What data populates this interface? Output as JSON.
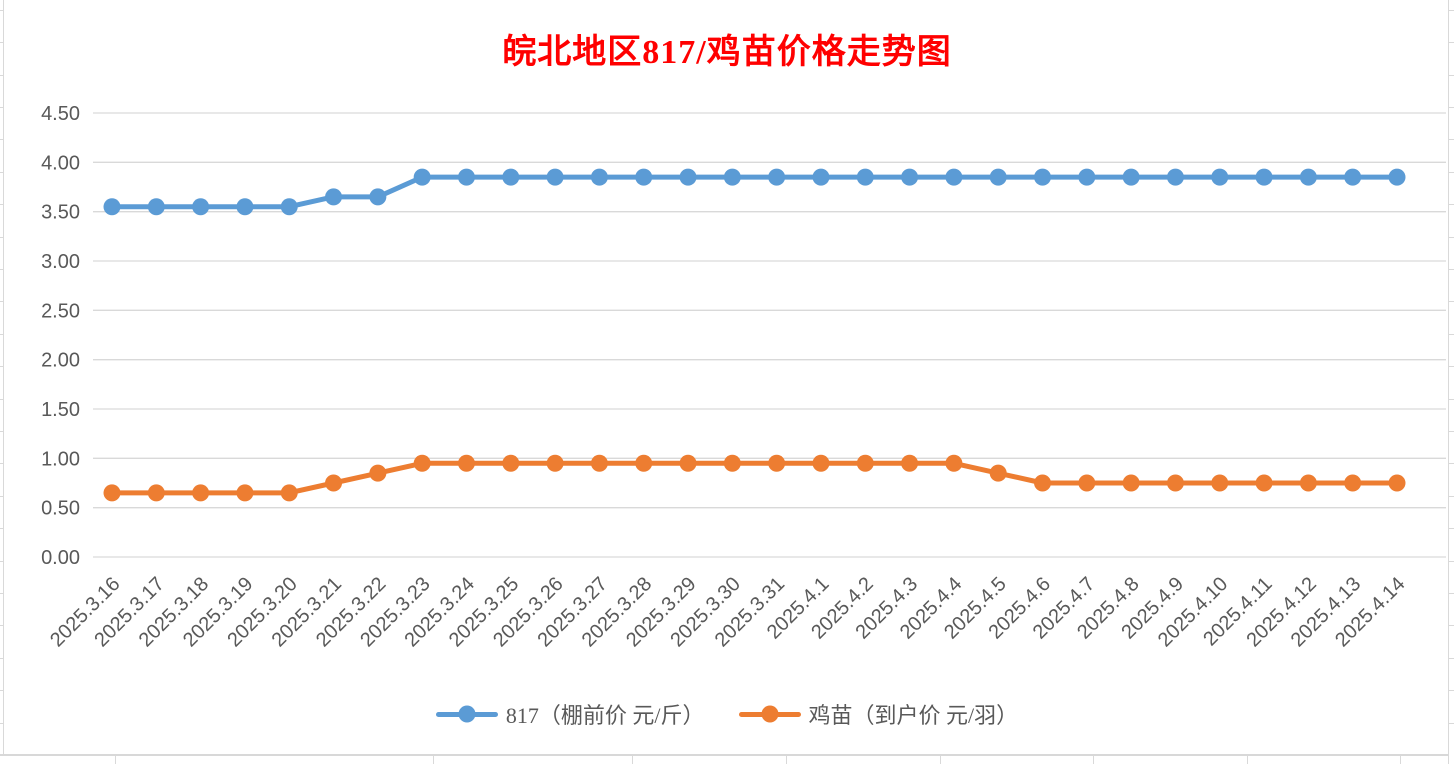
{
  "page": {
    "background": "#ffffff"
  },
  "chart_data": {
    "type": "line",
    "title": "皖北地区817/鸡苗价格走势图",
    "title_color": "#FF0000",
    "xlabel": "",
    "ylabel": "",
    "categories": [
      "2025.3.16",
      "2025.3.17",
      "2025.3.18",
      "2025.3.19",
      "2025.3.20",
      "2025.3.21",
      "2025.3.22",
      "2025.3.23",
      "2025.3.24",
      "2025.3.25",
      "2025.3.26",
      "2025.3.27",
      "2025.3.28",
      "2025.3.29",
      "2025.3.30",
      "2025.3.31",
      "2025.4.1",
      "2025.4.2",
      "2025.4.3",
      "2025.4.4",
      "2025.4.5",
      "2025.4.6",
      "2025.4.7",
      "2025.4.8",
      "2025.4.9",
      "2025.4.10",
      "2025.4.11",
      "2025.4.12",
      "2025.4.13",
      "2025.4.14"
    ],
    "series": [
      {
        "name": "817（棚前价 元/斤）",
        "color": "#5B9BD5",
        "values": [
          3.55,
          3.55,
          3.55,
          3.55,
          3.55,
          3.65,
          3.65,
          3.85,
          3.85,
          3.85,
          3.85,
          3.85,
          3.85,
          3.85,
          3.85,
          3.85,
          3.85,
          3.85,
          3.85,
          3.85,
          3.85,
          3.85,
          3.85,
          3.85,
          3.85,
          3.85,
          3.85,
          3.85,
          3.85,
          3.85
        ]
      },
      {
        "name": "鸡苗（到户价 元/羽）",
        "color": "#ED7D31",
        "values": [
          0.65,
          0.65,
          0.65,
          0.65,
          0.65,
          0.75,
          0.85,
          0.95,
          0.95,
          0.95,
          0.95,
          0.95,
          0.95,
          0.95,
          0.95,
          0.95,
          0.95,
          0.95,
          0.95,
          0.95,
          0.85,
          0.75,
          0.75,
          0.75,
          0.75,
          0.75,
          0.75,
          0.75,
          0.75,
          0.75
        ]
      }
    ],
    "ylim": [
      0,
      4.5
    ],
    "yticks": [
      "0.00",
      "0.50",
      "1.00",
      "1.50",
      "2.00",
      "2.50",
      "3.00",
      "3.50",
      "4.00",
      "4.50"
    ],
    "grid": "horizontal-only",
    "gridline_color": "#D9D9D9",
    "axis_text_color": "#595959",
    "legend_position": "bottom",
    "x_label_rotation_deg": 45
  }
}
